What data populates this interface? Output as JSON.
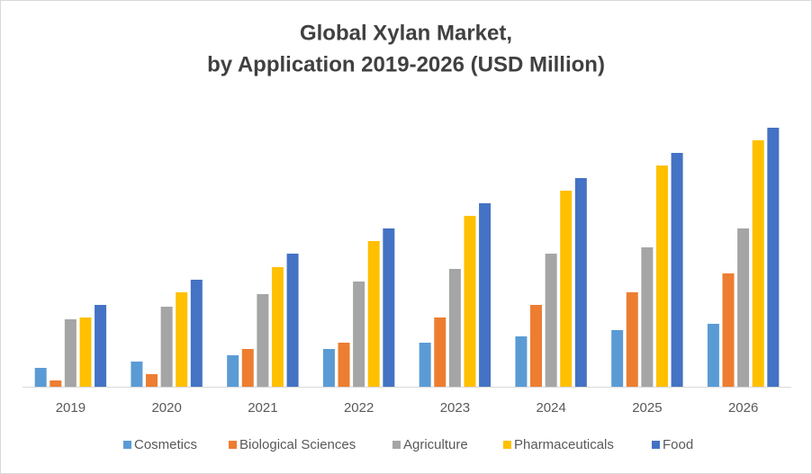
{
  "chart_data": {
    "type": "bar",
    "title": "Global Xylan Market,",
    "subtitle": "by Application 2019-2026 (USD Million)",
    "categories": [
      "2019",
      "2020",
      "2021",
      "2022",
      "2023",
      "2024",
      "2025",
      "2026"
    ],
    "series": [
      {
        "name": "Cosmetics",
        "color": "#5b9bd5",
        "values": [
          21,
          28,
          35,
          42,
          49,
          56,
          63,
          70
        ]
      },
      {
        "name": "Biological Sciences",
        "color": "#ed7d31",
        "values": [
          7,
          14,
          42,
          49,
          77,
          91,
          105,
          126
        ]
      },
      {
        "name": "Agriculture",
        "color": "#a5a5a5",
        "values": [
          75,
          89,
          103,
          117,
          131,
          148,
          155,
          176
        ]
      },
      {
        "name": "Pharmaceuticals",
        "color": "#ffc000",
        "values": [
          77,
          105,
          133,
          162,
          190,
          218,
          246,
          274
        ]
      },
      {
        "name": "Food",
        "color": "#4472c4",
        "values": [
          91,
          119,
          148,
          176,
          204,
          232,
          260,
          288
        ]
      }
    ],
    "ylim": [
      0,
      300
    ],
    "legend": "bottom"
  }
}
